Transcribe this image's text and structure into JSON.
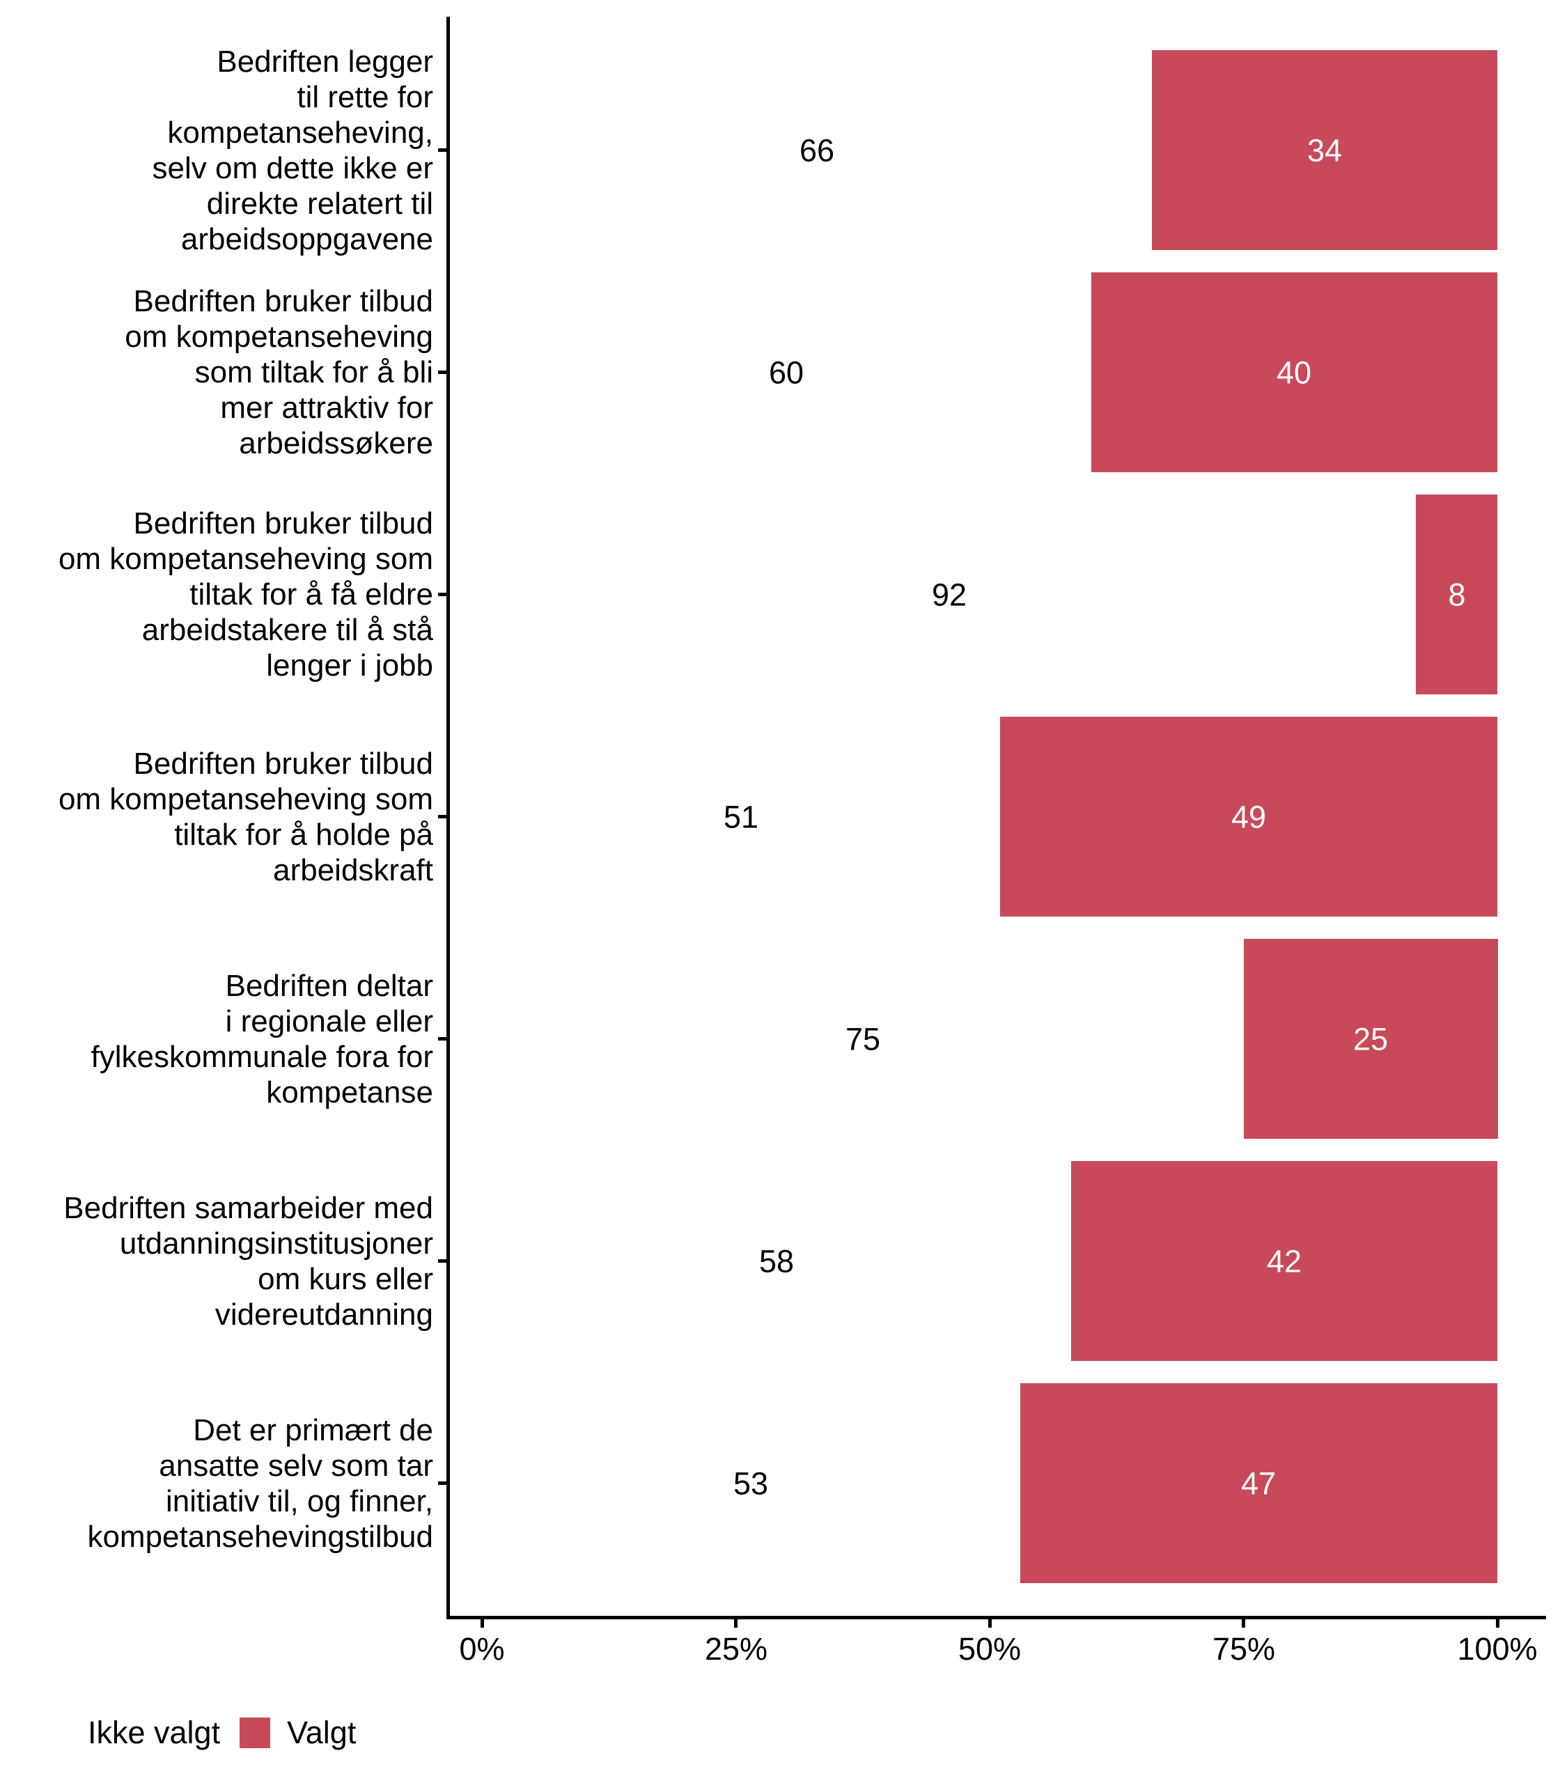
{
  "chart_data": {
    "type": "bar",
    "orientation": "horizontal",
    "stacked": true,
    "units": "percent",
    "title": "",
    "xlabel": "",
    "ylabel": "",
    "xlim": [
      0,
      100
    ],
    "grid": false,
    "legend_position": "bottom-left",
    "categories": [
      "Bedriften legger\ntil rette for\nkompetanseheving,\nselv om dette ikke er\ndirekte relatert til\narbeidsoppgavene",
      "Bedriften bruker tilbud\nom kompetanseheving\nsom tiltak for å bli\nmer attraktiv for\narbeidssøkere",
      "Bedriften bruker tilbud\nom kompetanseheving som\ntiltak for å få eldre\narbeidstakere til å stå\nlenger i jobb",
      "Bedriften bruker tilbud\nom kompetanseheving som\ntiltak for å holde på\narbeidskraft",
      "Bedriften deltar\ni regionale eller\nfylkeskommunale fora for\nkompetanse",
      "Bedriften samarbeider med\nutdanningsinstitusjoner\nom kurs eller\nvidereutdanning",
      "Det er primært de\nansatte selv som tar\ninitiativ til, og finner,\nkompetansehevingstilbud"
    ],
    "series": [
      {
        "name": "Ikke valgt",
        "color": "#FFFFFF",
        "label_color": "#000000",
        "values": [
          66,
          60,
          92,
          51,
          75,
          58,
          53
        ]
      },
      {
        "name": "Valgt",
        "color": "#C8495A",
        "label_color": "#FFFFFF",
        "values": [
          34,
          40,
          8,
          49,
          25,
          42,
          47
        ]
      }
    ],
    "x_ticks": [
      {
        "value": 0,
        "label": "0%"
      },
      {
        "value": 25,
        "label": "25%"
      },
      {
        "value": 50,
        "label": "50%"
      },
      {
        "value": 75,
        "label": "75%"
      },
      {
        "value": 100,
        "label": "100%"
      }
    ]
  },
  "legend": {
    "items": [
      {
        "label": "Ikke valgt",
        "color": "#FFFFFF"
      },
      {
        "label": "Valgt",
        "color": "#C8495A"
      }
    ]
  },
  "colors": {
    "background": "#FFFFFF",
    "axis": "#000000",
    "text": "#000000",
    "bar": "#C8495A",
    "value_on_bar": "#FFFFFF",
    "value_off_bar": "#000000"
  }
}
